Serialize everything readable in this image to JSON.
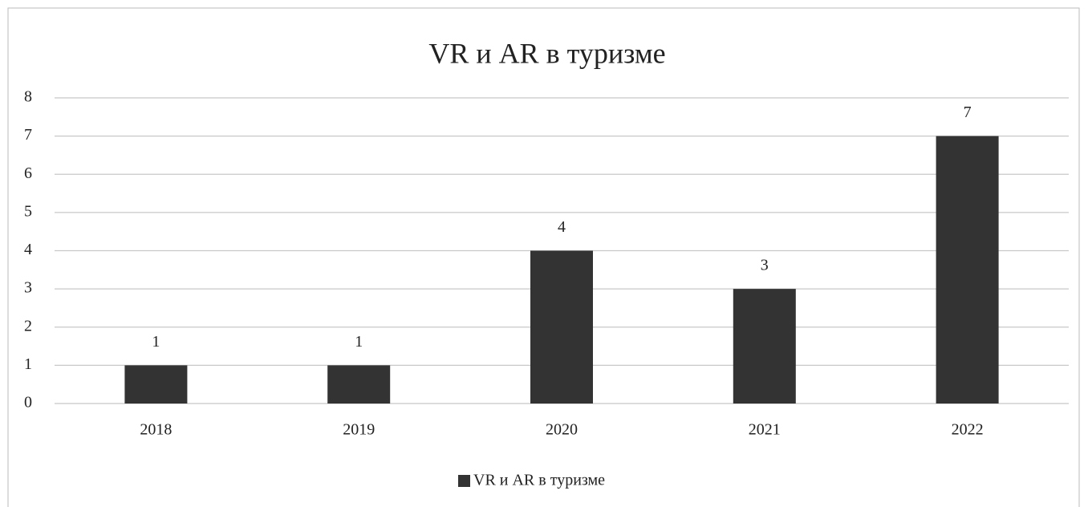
{
  "chart_data": {
    "type": "bar",
    "title": "VR и AR в туризме",
    "categories": [
      "2018",
      "2019",
      "2020",
      "2021",
      "2022"
    ],
    "series": [
      {
        "name": "VR и AR в туризме",
        "color": "#333333",
        "values": [
          1,
          1,
          4,
          3,
          7
        ]
      }
    ],
    "ylim": [
      0,
      8
    ],
    "yticks": [
      0,
      1,
      2,
      3,
      4,
      5,
      6,
      7,
      8
    ],
    "grid": true,
    "legend": "bottom"
  }
}
